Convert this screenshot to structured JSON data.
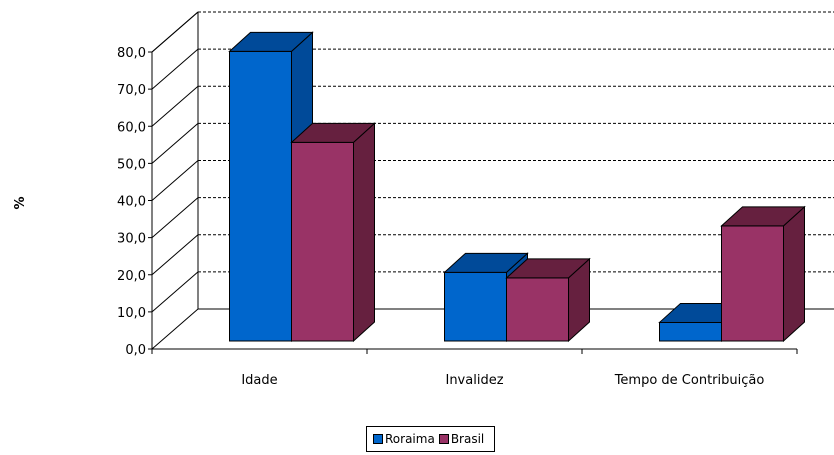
{
  "chart_data": {
    "type": "bar",
    "title": "",
    "xlabel": "",
    "ylabel": "%",
    "ylim": [
      0,
      80
    ],
    "ytick_step": 10,
    "ytick_labels": [
      "0,0",
      "10,0",
      "20,0",
      "30,0",
      "40,0",
      "50,0",
      "60,0",
      "70,0",
      "80,0"
    ],
    "grid": true,
    "three_d": true,
    "legend_position": "bottom",
    "categories": [
      "Idade",
      "Invalidez",
      "Tempo de Contribuição"
    ],
    "series": [
      {
        "name": "Roraima",
        "values": [
          78.0,
          18.5,
          5.0
        ],
        "color": "#0066cc",
        "side_color": "#004a99"
      },
      {
        "name": "Brasil",
        "values": [
          53.5,
          17.0,
          31.0
        ],
        "color": "#993366",
        "side_color": "#66203f"
      }
    ]
  }
}
